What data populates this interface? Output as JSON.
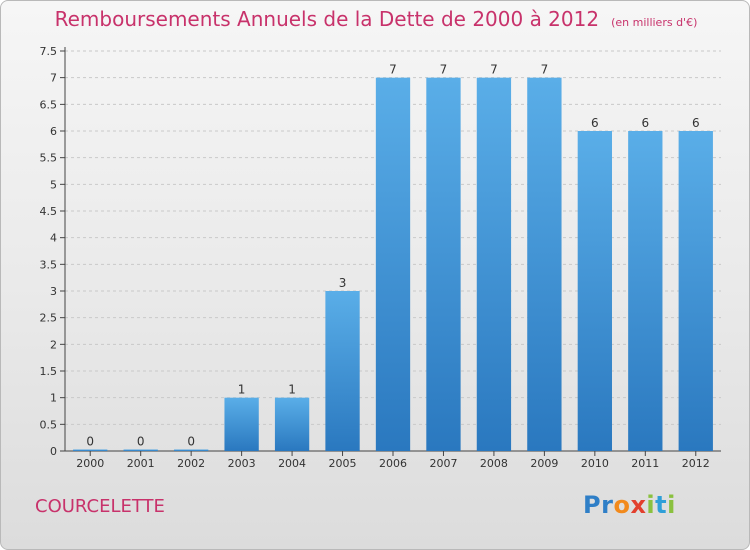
{
  "header": {
    "title": "Remboursements Annuels de la Dette de 2000 à 2012",
    "unit": "(en milliers d'€)"
  },
  "commune": "COURCELETTE",
  "brand": {
    "letters": [
      "P",
      "r",
      "o",
      "x",
      "i",
      "t",
      "i"
    ],
    "colors": [
      "#2f7fc7",
      "#2f7fc7",
      "#f28a1c",
      "#e23f2d",
      "#8ac13f",
      "#2f9fd8",
      "#8ac13f"
    ]
  },
  "colors": {
    "bar_top": "#5aaee8",
    "bar_bottom": "#2a78bf",
    "grid": "#c9c9c9",
    "axis": "#444444",
    "title": "#c8326b"
  },
  "chart_data": {
    "type": "bar",
    "categories": [
      "2000",
      "2001",
      "2002",
      "2003",
      "2004",
      "2005",
      "2006",
      "2007",
      "2008",
      "2009",
      "2010",
      "2011",
      "2012"
    ],
    "values": [
      0,
      0,
      0,
      1,
      1,
      3,
      7,
      7,
      7,
      7,
      6,
      6,
      6
    ],
    "data_labels": [
      "0",
      "0",
      "0",
      "1",
      "1",
      "3",
      "7",
      "7",
      "7",
      "7",
      "6",
      "6",
      "6"
    ],
    "yticks": [
      0,
      0.5,
      1,
      1.5,
      2,
      2.5,
      3,
      3.5,
      4,
      4.5,
      5,
      5.5,
      6,
      6.5,
      7,
      7.5
    ],
    "ytick_labels": [
      "0",
      "0.5",
      "1",
      "1.5",
      "2",
      "2.5",
      "3",
      "3.5",
      "4",
      "4.5",
      "5",
      "5.5",
      "6",
      "6.5",
      "7",
      "7.5"
    ],
    "ylim": [
      0,
      7.5
    ],
    "grid": true
  }
}
